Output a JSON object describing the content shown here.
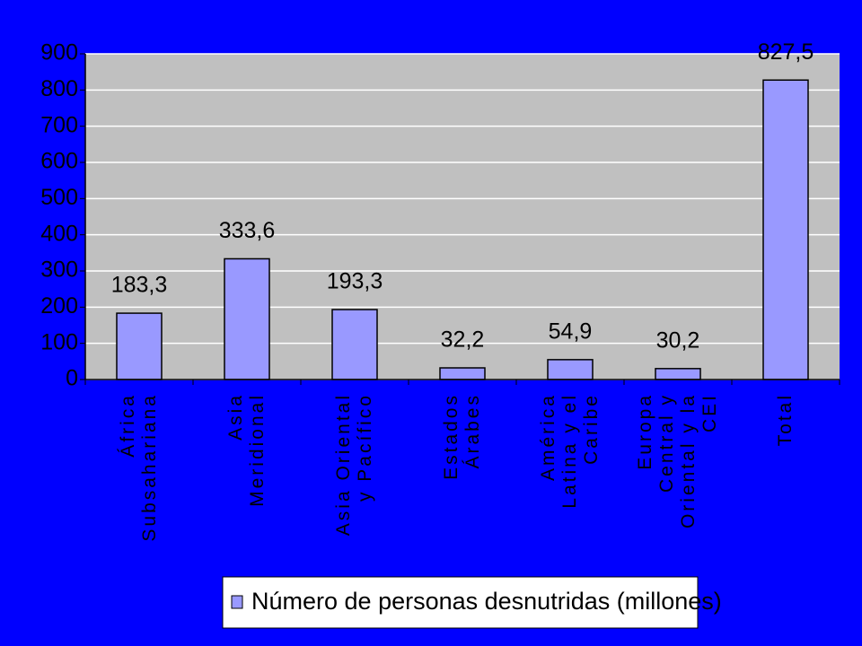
{
  "chart_data": {
    "type": "bar",
    "categories": [
      "África\nSubsahariana",
      "Asia\nMeridional",
      "Asia Oriental\ny Pacífico",
      "Estados\nÁrabes",
      "América\nLatina y el\nCaribe",
      "Europa\nCentral y\nOriental y la\nCEI",
      "Total"
    ],
    "values": [
      183.3,
      333.6,
      193.3,
      32.2,
      54.9,
      30.2,
      827.5
    ],
    "value_labels": [
      "183,3",
      "333,6",
      "193,3",
      "32,2",
      "54,9",
      "30,2",
      "827,5"
    ],
    "series_name": "Número de personas desnutridas (millones)",
    "color": "#9999ff",
    "ylim": [
      0,
      900
    ],
    "yticks": [
      0,
      100,
      200,
      300,
      400,
      500,
      600,
      700,
      800,
      900
    ],
    "grid": true
  }
}
